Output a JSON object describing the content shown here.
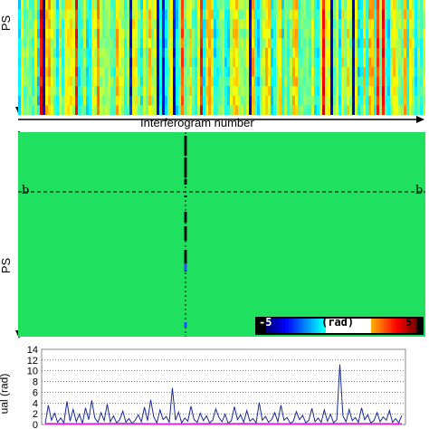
{
  "chart_data": [
    {
      "type": "heatmap",
      "ylabel": "PS",
      "xlabel": "Interferogram number",
      "colormap": "jet-like",
      "background_color": "#1fe05a"
    },
    {
      "type": "heatmap",
      "ylabel": "PS",
      "profile_marker": "b",
      "colorbar": {
        "min_label": "-5",
        "max_label": "5",
        "unit_label": "(rad)",
        "min": -5,
        "max": 5
      },
      "background_color": "#20e060"
    },
    {
      "type": "line",
      "ylabel": "ual (rad)",
      "ylim": [
        0,
        14
      ],
      "yticks": [
        0,
        2,
        4,
        6,
        8,
        10,
        12,
        14
      ],
      "grid": true,
      "series": [
        {
          "color": "#1b2a9a",
          "values": [
            0.2,
            3.6,
            0.8,
            2.1,
            0.4,
            1.2,
            0.3,
            4.3,
            0.6,
            2.8,
            0.5,
            1.9,
            0.2,
            3.1,
            0.9,
            4.5,
            1.2,
            0.4,
            2.2,
            0.7,
            3.8,
            0.5,
            1.6,
            0.3,
            0.9,
            2.5,
            0.4,
            1.1,
            0.2,
            0.8,
            1.8,
            0.5,
            3.2,
            0.7,
            4.6,
            1.4,
            0.3,
            2.7,
            0.9,
            1.5,
            0.4,
            6.8,
            0.8,
            2.3,
            0.3,
            1.2,
            0.6,
            3.4,
            0.9,
            0.4,
            2.1,
            0.7,
            1.6,
            0.3,
            0.8,
            2.9,
            1.3,
            0.5,
            1.9,
            0.2,
            0.7,
            3.3,
            0.9,
            1.8,
            0.4,
            2.6,
            0.6,
            1.1,
            0.3,
            4.1,
            0.8,
            1.5,
            0.4,
            0.9,
            2.2,
            0.5,
            3.6,
            0.8,
            1.3,
            0.2,
            0.6,
            2.4,
            0.9,
            1.7,
            0.3,
            0.8,
            3.0,
            0.5,
            1.2,
            0.4,
            2.7,
            0.6,
            1.9,
            0.3,
            0.9,
            11.2,
            1.6,
            0.5,
            2.8,
            0.7,
            1.3,
            0.4,
            3.1,
            0.9,
            1.8,
            0.3,
            0.7,
            2.2,
            0.5,
            1.4,
            0.8,
            2.6,
            0.4,
            1.1,
            0.3,
            1.7
          ]
        },
        {
          "color": "#e020e0",
          "values": [
            0.15,
            0.12,
            0.18,
            0.1,
            0.14,
            0.16,
            0.11,
            0.13,
            0.17,
            0.12
          ]
        }
      ]
    }
  ]
}
